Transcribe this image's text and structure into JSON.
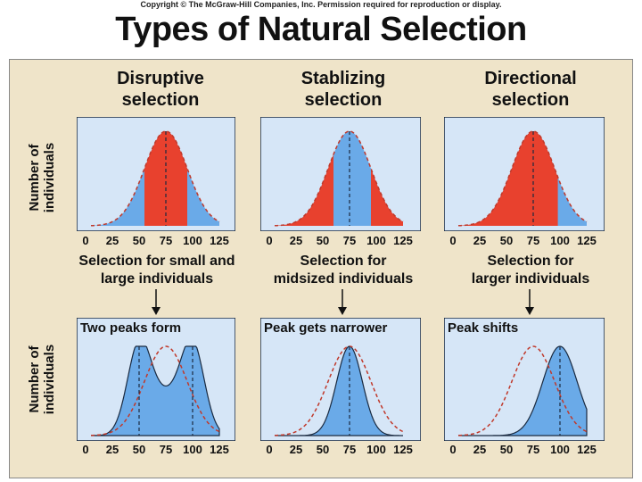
{
  "header": {
    "copyright": "Copyright © The McGraw-Hill Companies, Inc. Permission required for reproduction or display.",
    "title": "Types of Natural Selection"
  },
  "y_axis_label_line1": "Number of",
  "y_axis_label_line2": "individuals",
  "x_ticks": [
    "0",
    "25",
    "50",
    "75",
    "100",
    "125"
  ],
  "columns": [
    {
      "title_line1": "Disruptive",
      "title_line2": "selection",
      "caption_line1": "Selection for small and",
      "caption_line2": "large individuals",
      "result_label": "Two peaks form"
    },
    {
      "title_line1": "Stablizing",
      "title_line2": "selection",
      "caption_line1": "Selection for",
      "caption_line2": "midsized individuals",
      "result_label": "Peak gets narrower"
    },
    {
      "title_line1": "Directional",
      "title_line2": "selection",
      "caption_line1": "Selection for",
      "caption_line2": "larger individuals",
      "result_label": "Peak shifts"
    }
  ],
  "colors": {
    "plot_bg": "#d6e6f7",
    "blue_fill": "#6aaae8",
    "red_fill": "#e8412e",
    "dashed_red": "#c0392b",
    "outline": "#1a2a40",
    "panel_bg": "#efe4c9"
  }
}
